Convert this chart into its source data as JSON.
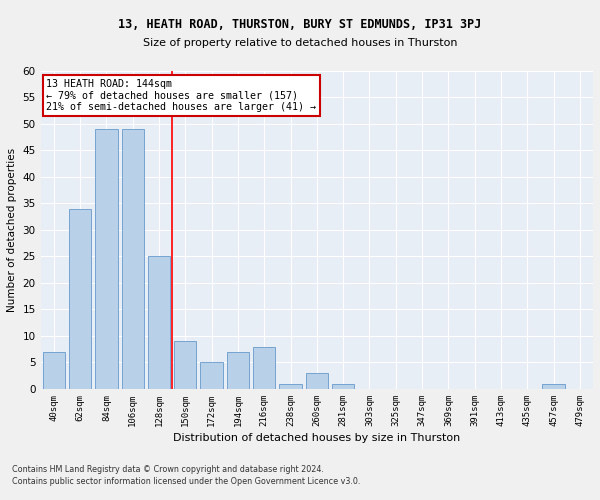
{
  "title1": "13, HEATH ROAD, THURSTON, BURY ST EDMUNDS, IP31 3PJ",
  "title2": "Size of property relative to detached houses in Thurston",
  "xlabel": "Distribution of detached houses by size in Thurston",
  "ylabel": "Number of detached properties",
  "footnote1": "Contains HM Land Registry data © Crown copyright and database right 2024.",
  "footnote2": "Contains public sector information licensed under the Open Government Licence v3.0.",
  "categories": [
    "40sqm",
    "62sqm",
    "84sqm",
    "106sqm",
    "128sqm",
    "150sqm",
    "172sqm",
    "194sqm",
    "216sqm",
    "238sqm",
    "260sqm",
    "281sqm",
    "303sqm",
    "325sqm",
    "347sqm",
    "369sqm",
    "391sqm",
    "413sqm",
    "435sqm",
    "457sqm",
    "479sqm"
  ],
  "values": [
    7,
    34,
    49,
    49,
    25,
    9,
    5,
    7,
    8,
    1,
    3,
    1,
    0,
    0,
    0,
    0,
    0,
    0,
    0,
    1,
    0
  ],
  "bar_color": "#b8d0e8",
  "bar_edge_color": "#6699cc",
  "background_color": "#e8eef6",
  "grid_color": "#ffffff",
  "annotation_box_text": "13 HEATH ROAD: 144sqm\n← 79% of detached houses are smaller (157)\n21% of semi-detached houses are larger (41) →",
  "annotation_box_color": "#ffffff",
  "annotation_box_edge_color": "#cc0000",
  "ylim": [
    0,
    60
  ],
  "yticks": [
    0,
    5,
    10,
    15,
    20,
    25,
    30,
    35,
    40,
    45,
    50,
    55,
    60
  ],
  "fig_bg": "#f0f0f0"
}
